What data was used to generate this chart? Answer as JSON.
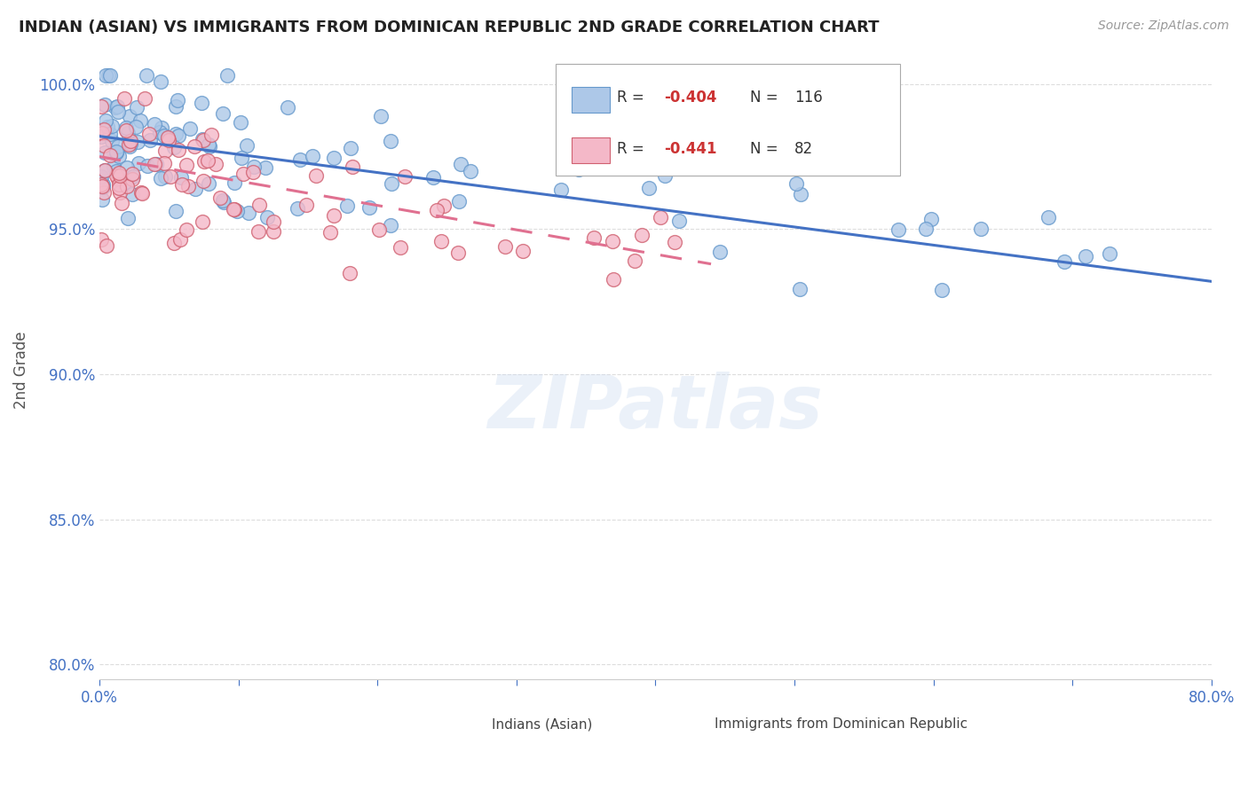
{
  "title": "INDIAN (ASIAN) VS IMMIGRANTS FROM DOMINICAN REPUBLIC 2ND GRADE CORRELATION CHART",
  "source_text": "Source: ZipAtlas.com",
  "ylabel": "2nd Grade",
  "xmin": 0.0,
  "xmax": 0.8,
  "ymin": 0.795,
  "ymax": 1.008,
  "yticks": [
    0.8,
    0.85,
    0.9,
    0.95,
    1.0
  ],
  "ytick_labels": [
    "80.0%",
    "85.0%",
    "90.0%",
    "95.0%",
    "100.0%"
  ],
  "xticks": [
    0.0,
    0.1,
    0.2,
    0.3,
    0.4,
    0.5,
    0.6,
    0.7,
    0.8
  ],
  "xtick_labels": [
    "0.0%",
    "",
    "",
    "",
    "",
    "",
    "",
    "",
    "80.0%"
  ],
  "blue_R": -0.404,
  "blue_N": 116,
  "pink_R": -0.441,
  "pink_N": 82,
  "blue_color": "#adc8e8",
  "blue_line_color": "#4472c4",
  "pink_color": "#f4b8c8",
  "pink_line_color": "#e07090",
  "blue_marker_edge": "#6699cc",
  "pink_marker_edge": "#d06070",
  "blue_line_x0": 0.0,
  "blue_line_y0": 0.982,
  "blue_line_x1": 0.8,
  "blue_line_y1": 0.932,
  "pink_line_x0": 0.0,
  "pink_line_y0": 0.975,
  "pink_line_x1": 0.44,
  "pink_line_y1": 0.938,
  "watermark": "ZIPatlas",
  "legend_label_blue": "Indians (Asian)",
  "legend_label_pink": "Immigrants from Dominican Republic",
  "tick_color": "#4472c4",
  "grid_color": "#dddddd",
  "axis_color": "#555555",
  "legend_r_color": "#cc3333"
}
